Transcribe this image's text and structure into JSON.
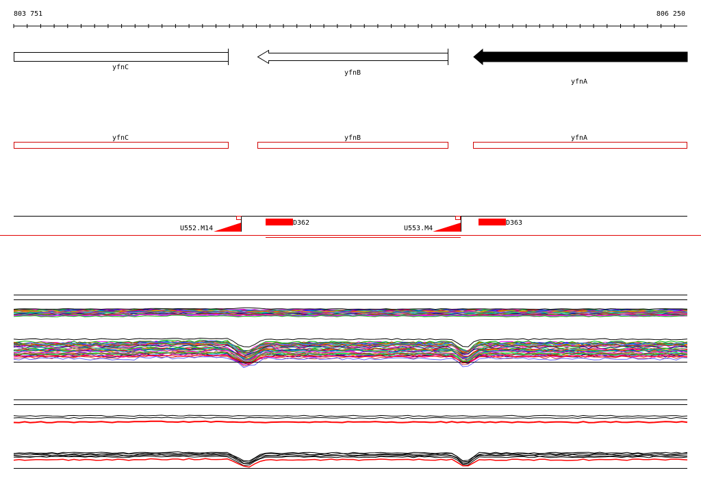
{
  "coordinates": {
    "start": "803 751",
    "end": "806 250"
  },
  "genes": [
    {
      "name": "yfnC",
      "strand": "forward",
      "filled": false
    },
    {
      "name": "yfnB",
      "strand": "reverse",
      "filled": false
    },
    {
      "name": "yfnA",
      "strand": "reverse",
      "filled": true
    }
  ],
  "annotations": [
    {
      "name": "yfnC"
    },
    {
      "name": "yfnB"
    },
    {
      "name": "yfnA"
    }
  ],
  "features": [
    {
      "label": "U552.M14",
      "type": "terminator"
    },
    {
      "label": "D362",
      "type": "promoter"
    },
    {
      "label": "U553.M4",
      "type": "terminator"
    },
    {
      "label": "D363",
      "type": "promoter"
    }
  ],
  "colors": {
    "gene_outline": "#000000",
    "gene_fill": "#000000",
    "annotation": "#d00000",
    "feature": "#ff0000"
  }
}
